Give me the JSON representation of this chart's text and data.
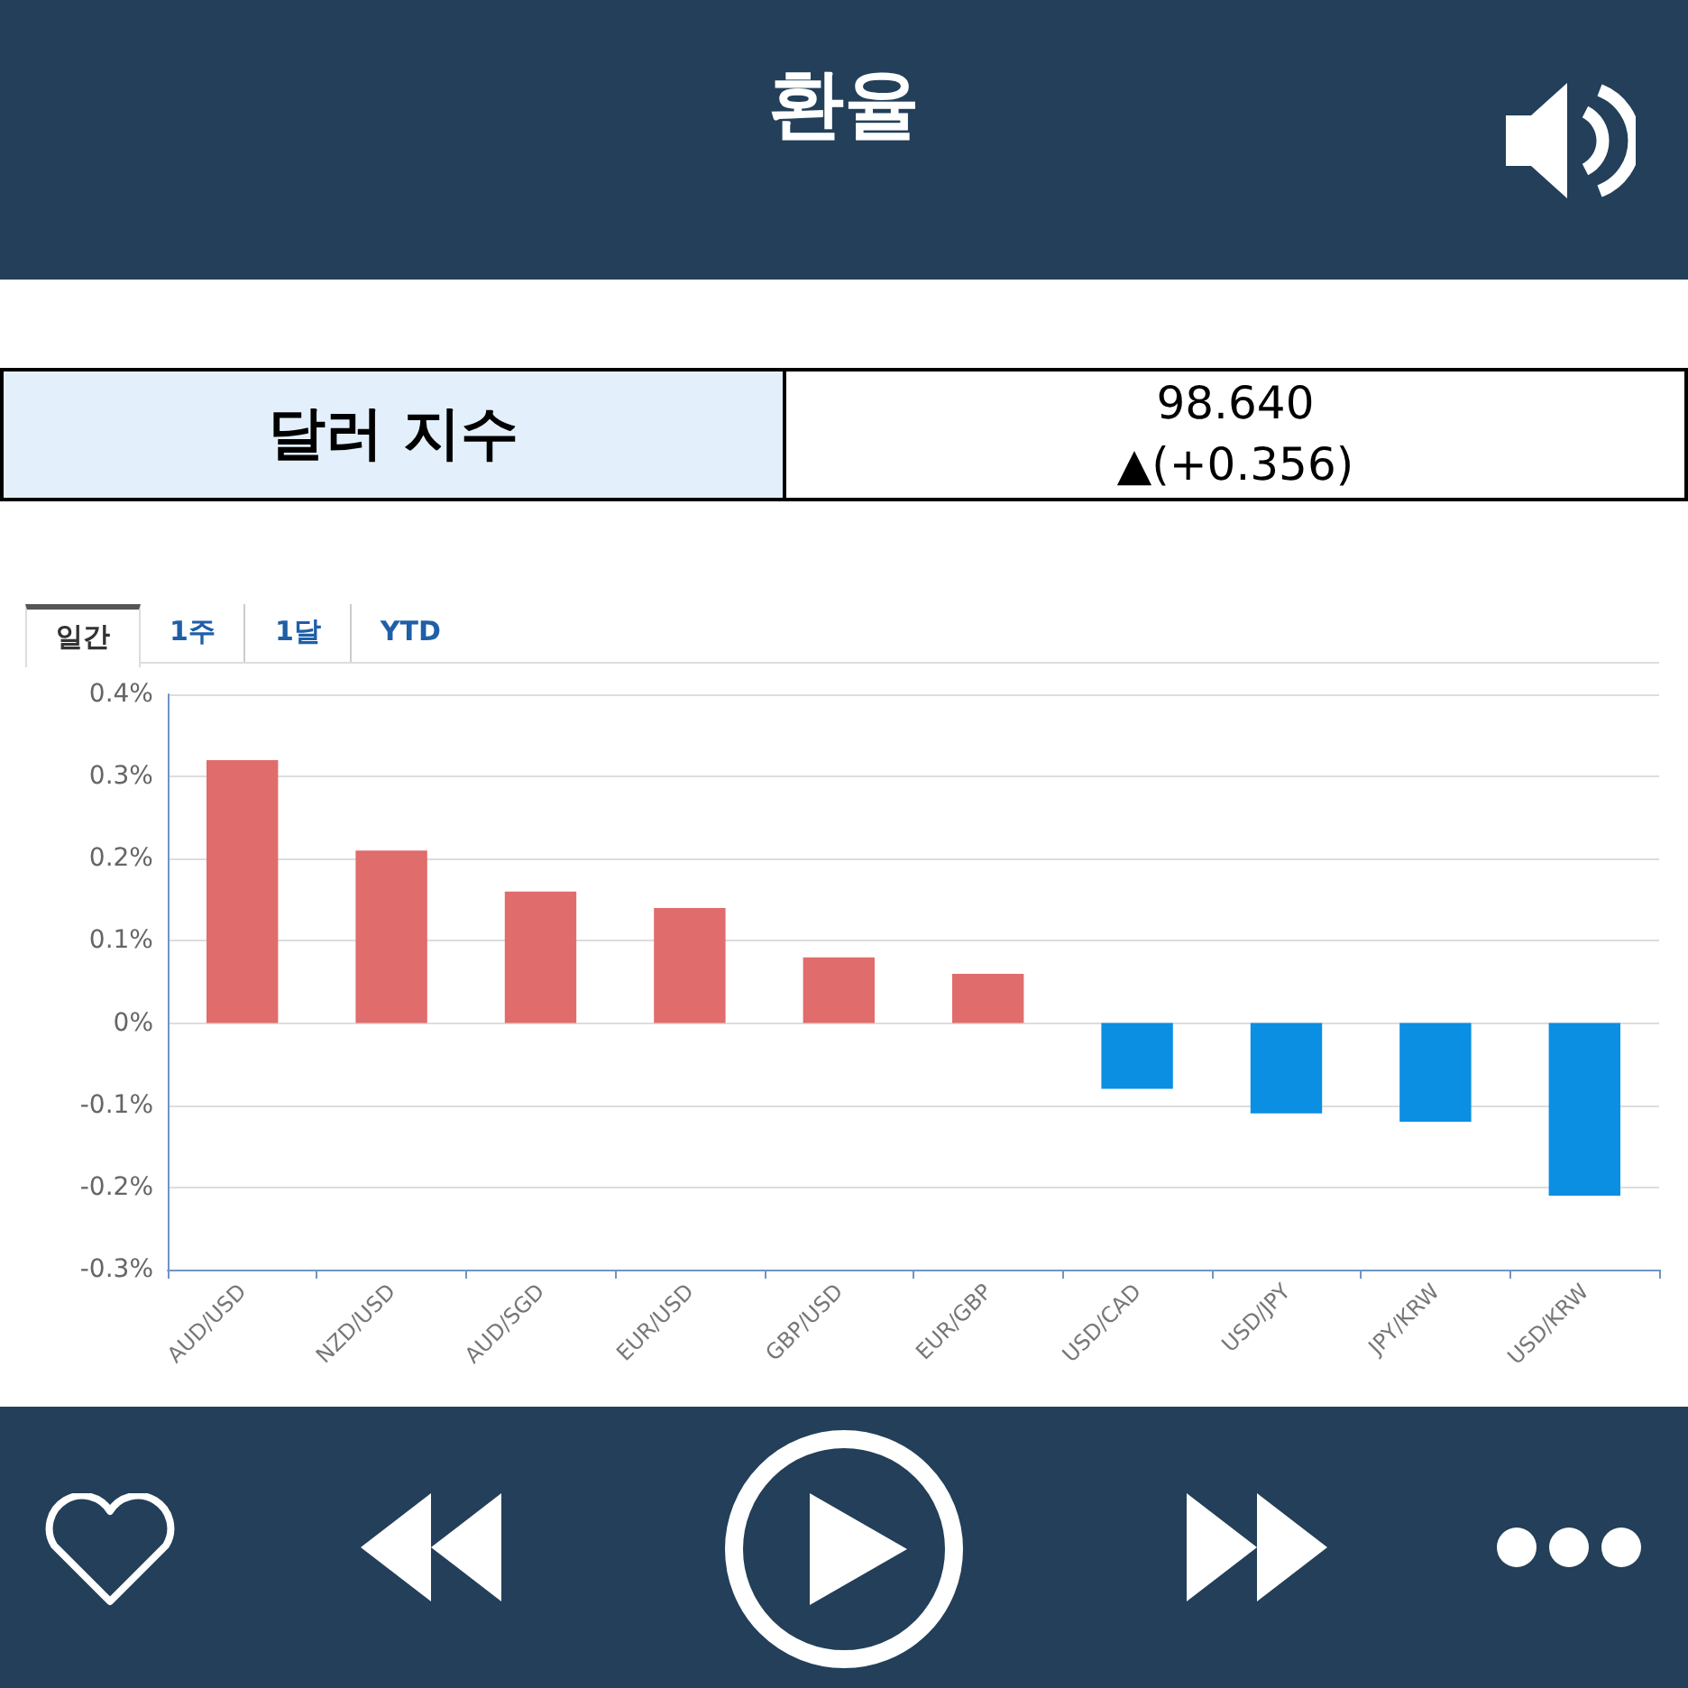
{
  "chart_data": {
    "type": "bar",
    "title": "환율",
    "annotations": [
      "달러 지수",
      "98.640",
      "▲(+0.356)",
      "일간",
      "1주",
      "1달",
      "YTD"
    ],
    "categories": [
      "AUD/USD",
      "NZD/USD",
      "AUD/SGD",
      "EUR/USD",
      "GBP/USD",
      "EUR/GBP",
      "USD/CAD",
      "USD/JPY",
      "JPY/KRW",
      "USD/KRW"
    ],
    "values": [
      0.32,
      0.21,
      0.16,
      0.14,
      0.08,
      0.06,
      -0.08,
      -0.11,
      -0.12,
      -0.21
    ],
    "colors": [
      "#e06c6c",
      "#e06c6c",
      "#e06c6c",
      "#e06c6c",
      "#e06c6c",
      "#e06c6c",
      "#0a8fe3",
      "#0a8fe3",
      "#0a8fe3",
      "#0a8fe3"
    ],
    "ylim": [
      -0.3,
      0.4
    ],
    "yticks": [
      {
        "value": -0.3,
        "label": "-0.3%"
      },
      {
        "value": -0.2,
        "label": "-0.2%"
      },
      {
        "value": -0.1,
        "label": "-0.1%"
      },
      {
        "value": 0,
        "label": "0%"
      },
      {
        "value": 0.1,
        "label": "0.1%"
      },
      {
        "value": 0.2,
        "label": "0.2%"
      },
      {
        "value": 0.3,
        "label": "0.3%"
      },
      {
        "value": 0.4,
        "label": "0.4%"
      }
    ],
    "grid": "y"
  }
}
